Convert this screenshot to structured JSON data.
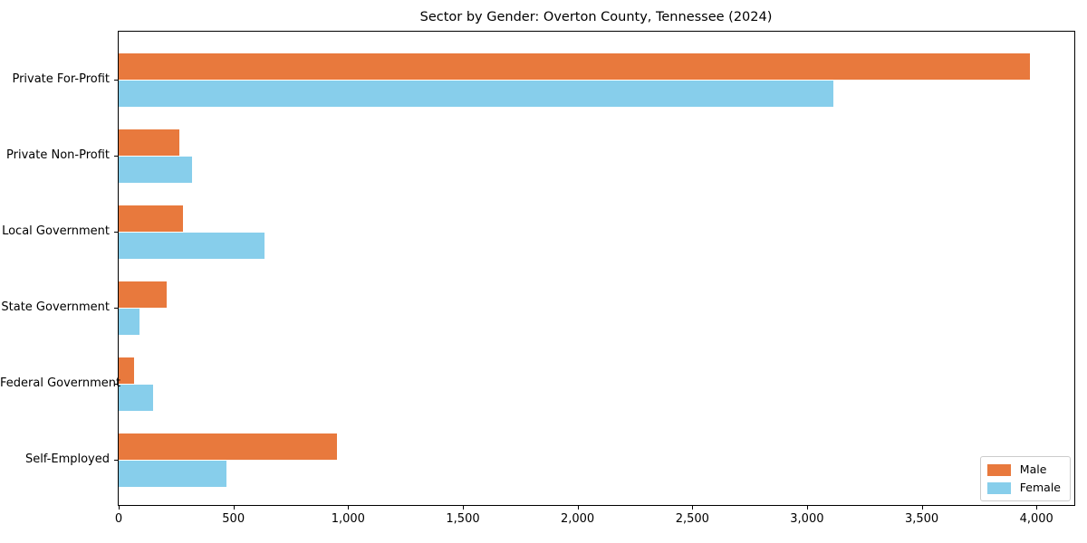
{
  "chart_data": {
    "type": "bar",
    "orientation": "horizontal",
    "title": "Sector by Gender: Overton County, Tennessee (2024)",
    "categories": [
      "Private For-Profit",
      "Private Non-Profit",
      "Local Government",
      "State Government",
      "Federal Government",
      "Self-Employed"
    ],
    "series": [
      {
        "name": "Male",
        "color": "#e8793d",
        "values": [
          3970,
          265,
          280,
          210,
          65,
          950
        ]
      },
      {
        "name": "Female",
        "color": "#87ceeb",
        "values": [
          3115,
          320,
          635,
          90,
          150,
          470
        ]
      }
    ],
    "xlabel": "",
    "ylabel": "",
    "xlim": [
      0,
      4165
    ],
    "xticks": [
      0,
      500,
      1000,
      1500,
      2000,
      2500,
      3000,
      3500,
      4000
    ],
    "xtick_labels": [
      "0",
      "500",
      "1,000",
      "1,500",
      "2,000",
      "2,500",
      "3,000",
      "3,500",
      "4,000"
    ],
    "grid": false,
    "legend": {
      "position": "lower right",
      "items": [
        {
          "label": "Male",
          "color": "#e8793d"
        },
        {
          "label": "Female",
          "color": "#87ceeb"
        }
      ]
    }
  }
}
